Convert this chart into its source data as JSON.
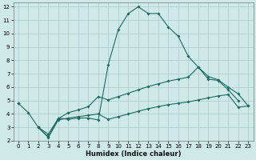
{
  "xlabel": "Humidex (Indice chaleur)",
  "bg_color": "#cfe8e8",
  "grid_color": "#aacaca",
  "line_color": "#1a6b5e",
  "xlim": [
    -0.5,
    23.5
  ],
  "ylim": [
    2,
    12.3
  ],
  "xticks": [
    0,
    1,
    2,
    3,
    4,
    5,
    6,
    7,
    8,
    9,
    10,
    11,
    12,
    13,
    14,
    15,
    16,
    17,
    18,
    19,
    20,
    21,
    22,
    23
  ],
  "yticks": [
    2,
    3,
    4,
    5,
    6,
    7,
    8,
    9,
    10,
    11,
    12
  ],
  "line1_x": [
    0,
    1,
    2,
    3,
    4,
    5,
    6,
    7,
    8,
    9,
    10,
    11,
    12,
    13,
    14,
    15,
    16,
    17,
    18,
    19,
    20,
    21,
    22,
    23
  ],
  "line1_y": [
    4.8,
    4.1,
    3.0,
    2.3,
    3.7,
    3.6,
    3.7,
    3.7,
    3.55,
    7.7,
    10.3,
    11.5,
    12.0,
    11.5,
    11.5,
    10.5,
    9.8,
    8.3,
    7.5,
    6.6,
    6.5,
    5.8,
    5.0,
    null
  ],
  "line2_x": [
    0,
    1,
    2,
    3,
    4,
    5,
    6,
    7,
    8,
    9,
    10,
    11,
    12,
    13,
    14,
    15,
    16,
    17,
    18,
    19,
    20,
    21,
    22,
    23
  ],
  "line2_y": [
    4.8,
    null,
    3.0,
    2.5,
    3.65,
    4.1,
    4.3,
    4.55,
    5.3,
    5.05,
    5.3,
    5.55,
    5.8,
    6.05,
    6.25,
    6.45,
    6.6,
    6.75,
    7.5,
    6.8,
    6.55,
    6.0,
    5.5,
    4.6
  ],
  "line3_x": [
    0,
    1,
    2,
    3,
    4,
    5,
    6,
    7,
    8,
    9,
    10,
    11,
    12,
    13,
    14,
    15,
    16,
    17,
    18,
    19,
    20,
    21,
    22,
    23
  ],
  "line3_y": [
    null,
    null,
    3.0,
    2.25,
    3.55,
    3.7,
    3.8,
    3.9,
    4.0,
    3.6,
    3.8,
    4.0,
    4.2,
    4.4,
    4.55,
    4.7,
    4.8,
    4.9,
    5.05,
    5.2,
    5.35,
    5.45,
    4.5,
    4.6
  ]
}
